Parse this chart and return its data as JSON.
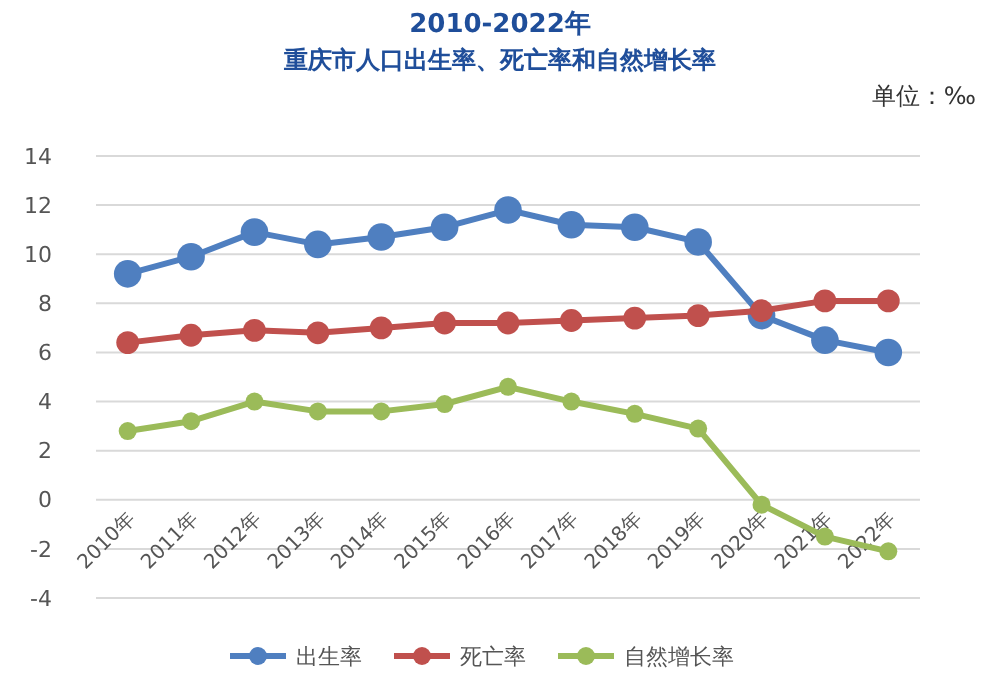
{
  "chart_data": {
    "type": "line",
    "title": "2010-2022年",
    "subtitle": "重庆市人口出生率、死亡率和自然增长率",
    "annotations": [
      "单位：‰"
    ],
    "categories": [
      "2010年",
      "2011年",
      "2012年",
      "2013年",
      "2014年",
      "2015年",
      "2016年",
      "2017年",
      "2018年",
      "2019年",
      "2020年",
      "2021年",
      "2022年"
    ],
    "series": [
      {
        "name": "出生率",
        "color": "#4f7fc0",
        "values": [
          9.2,
          9.9,
          10.9,
          10.4,
          10.7,
          11.1,
          11.8,
          11.2,
          11.1,
          10.5,
          7.5,
          6.5,
          6.0
        ]
      },
      {
        "name": "死亡率",
        "color": "#c0504d",
        "values": [
          6.4,
          6.7,
          6.9,
          6.8,
          7.0,
          7.2,
          7.2,
          7.3,
          7.4,
          7.5,
          7.7,
          8.1,
          8.1
        ]
      },
      {
        "name": "自然增长率",
        "color": "#9bbb59",
        "values": [
          2.8,
          3.2,
          4.0,
          3.6,
          3.6,
          3.9,
          4.6,
          4.0,
          3.5,
          2.9,
          -0.2,
          -1.5,
          -2.1
        ]
      }
    ],
    "ylim": [
      -4,
      14
    ],
    "yticks": [
      -4,
      -2,
      0,
      2,
      4,
      6,
      8,
      10,
      12,
      14
    ],
    "grid": "y",
    "legend": "bottom",
    "marker": "circle",
    "line_style": "solid"
  }
}
